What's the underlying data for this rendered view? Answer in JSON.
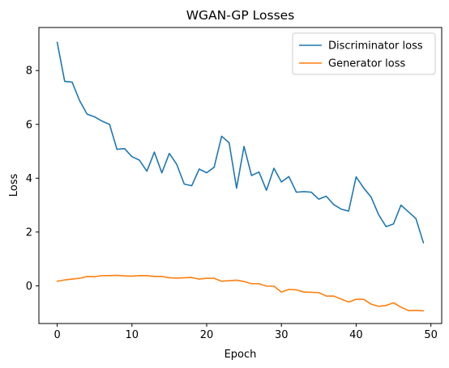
{
  "chart_data": {
    "type": "line",
    "title": "WGAN-GP Losses",
    "xlabel": "Epoch",
    "ylabel": "Loss",
    "xlim": [
      -2.45,
      51.45
    ],
    "ylim": [
      -1.4,
      9.6
    ],
    "xticks": [
      0,
      10,
      20,
      30,
      40,
      50
    ],
    "yticks": [
      0,
      2,
      4,
      6,
      8
    ],
    "grid": false,
    "legend_position": "top-right",
    "x": [
      0,
      1,
      2,
      3,
      4,
      5,
      6,
      7,
      8,
      9,
      10,
      11,
      12,
      13,
      14,
      15,
      16,
      17,
      18,
      19,
      20,
      21,
      22,
      23,
      24,
      25,
      26,
      27,
      28,
      29,
      30,
      31,
      32,
      33,
      34,
      35,
      36,
      37,
      38,
      39,
      40,
      41,
      42,
      43,
      44,
      45,
      46,
      47,
      48,
      49
    ],
    "series": [
      {
        "name": "Discriminator loss",
        "color": "#1f77b4",
        "values": [
          9.05,
          7.6,
          7.57,
          6.88,
          6.38,
          6.28,
          6.12,
          6.0,
          5.07,
          5.1,
          4.8,
          4.67,
          4.26,
          4.97,
          4.2,
          4.92,
          4.51,
          3.78,
          3.72,
          4.34,
          4.2,
          4.41,
          5.56,
          5.32,
          3.63,
          5.18,
          4.1,
          4.23,
          3.55,
          4.37,
          3.86,
          4.06,
          3.48,
          3.5,
          3.48,
          3.22,
          3.33,
          3.02,
          2.85,
          2.78,
          4.05,
          3.64,
          3.3,
          2.65,
          2.2,
          2.3,
          3.0,
          2.75,
          2.5,
          1.6
        ]
      },
      {
        "name": "Generator loss",
        "color": "#ff7f0e",
        "values": [
          0.17,
          0.22,
          0.25,
          0.28,
          0.35,
          0.34,
          0.38,
          0.38,
          0.39,
          0.37,
          0.36,
          0.38,
          0.38,
          0.35,
          0.35,
          0.3,
          0.29,
          0.3,
          0.31,
          0.25,
          0.28,
          0.28,
          0.17,
          0.19,
          0.21,
          0.16,
          0.08,
          0.08,
          -0.01,
          -0.01,
          -0.23,
          -0.13,
          -0.15,
          -0.23,
          -0.24,
          -0.25,
          -0.38,
          -0.38,
          -0.49,
          -0.6,
          -0.5,
          -0.5,
          -0.68,
          -0.76,
          -0.73,
          -0.63,
          -0.79,
          -0.92,
          -0.91,
          -0.93
        ]
      }
    ]
  }
}
